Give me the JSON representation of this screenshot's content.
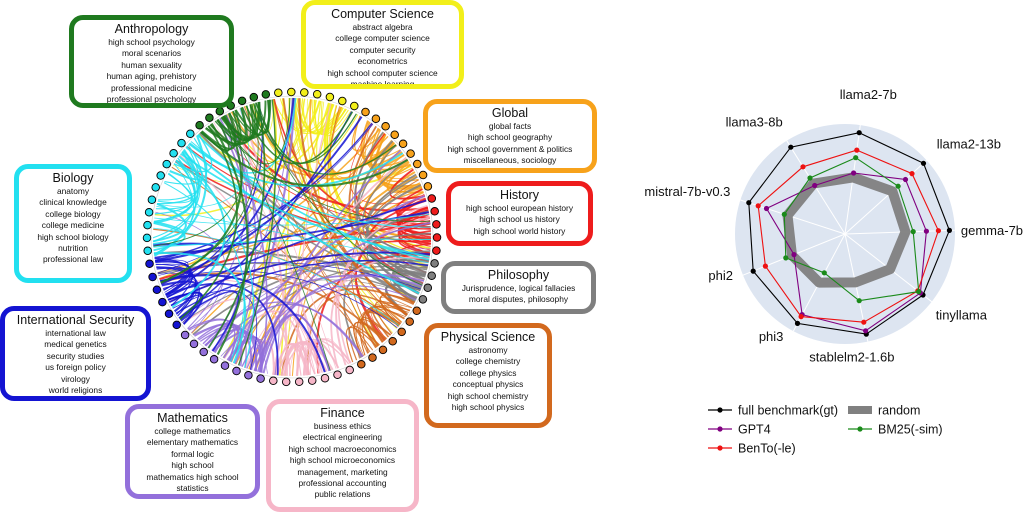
{
  "chord_panel": {
    "categories": [
      {
        "id": "anthropology",
        "title": "Anthropology",
        "color": "#1f7a1f",
        "items": [
          "high school psychology",
          "moral scenarios",
          "human sexuality",
          "human aging, prehistory",
          "professional medicine",
          "professional psychology"
        ]
      },
      {
        "id": "computer-science",
        "title": "Computer Science",
        "color": "#f2ef1a",
        "items": [
          "abstract algebra",
          "college computer science",
          "computer security",
          "econometrics",
          "high school computer science",
          "machine learning"
        ]
      },
      {
        "id": "global",
        "title": "Global",
        "color": "#f7a21b",
        "items": [
          "global facts",
          "high school geography",
          "high school government & politics",
          "miscellaneous, sociology"
        ]
      },
      {
        "id": "history",
        "title": "History",
        "color": "#ee1c1c",
        "items": [
          "high school european history",
          "high school us history",
          "high school world history"
        ]
      },
      {
        "id": "philosophy",
        "title": "Philosophy",
        "color": "#7f7f7f",
        "items": [
          "Jurisprudence, logical fallacies",
          "moral disputes, philosophy"
        ]
      },
      {
        "id": "physical-science",
        "title": "Physical Science",
        "color": "#d2691e",
        "items": [
          "astronomy",
          "college chemistry",
          "college physics",
          "conceptual physics",
          "high school chemistry",
          "high school physics"
        ]
      },
      {
        "id": "finance",
        "title": "Finance",
        "color": "#f6b6c8",
        "items": [
          "business ethics",
          "electrical engineering",
          "high school macroeconomics",
          "high school microeconomics",
          "management, marketing",
          "professional accounting",
          "public relations"
        ]
      },
      {
        "id": "mathematics",
        "title": "Mathematics",
        "color": "#9370db",
        "items": [
          "college mathematics",
          "elementary mathematics",
          "formal logic",
          "high school",
          "mathematics high school",
          "statistics"
        ]
      },
      {
        "id": "international-security",
        "title": "International Security",
        "color": "#1414d2",
        "items": [
          "international law",
          "medical genetics",
          "security studies",
          "us foreign policy",
          "virology",
          "world religions"
        ]
      },
      {
        "id": "biology",
        "title": "Biology",
        "color": "#22e0f0",
        "items": [
          "anatomy",
          "clinical knowledge",
          "college biology",
          "college medicine",
          "high school biology",
          "nutrition",
          "professional law"
        ]
      }
    ]
  },
  "chart_data": {
    "type": "radar",
    "axes": [
      "llama2-7b",
      "llama2-13b",
      "gemma-7b",
      "tinyllama",
      "stablelm2-1.6b",
      "phi3",
      "phi2",
      "mistral-7b-v0.3",
      "llama3-8b"
    ],
    "grid": true,
    "legend_position": "bottom",
    "series": [
      {
        "name": "full benchmark(gt)",
        "color": "#000000",
        "marker": "circle",
        "values": [
          0.93,
          0.96,
          0.95,
          0.9,
          0.93,
          0.92,
          0.9,
          0.92,
          0.93
        ]
      },
      {
        "name": "GPT4",
        "color": "#800080",
        "marker": "circle",
        "values": [
          0.56,
          0.74,
          0.74,
          0.87,
          0.9,
          0.83,
          0.5,
          0.75,
          0.52
        ]
      },
      {
        "name": "BenTo(-le)",
        "color": "#ee1111",
        "marker": "circle",
        "values": [
          0.77,
          0.82,
          0.85,
          0.84,
          0.82,
          0.85,
          0.78,
          0.83,
          0.72
        ]
      },
      {
        "name": "BM25(-sim)",
        "color": "#1a8a1a",
        "marker": "circle",
        "values": [
          0.7,
          0.65,
          0.62,
          0.85,
          0.62,
          0.4,
          0.58,
          0.58,
          0.6
        ]
      },
      {
        "name": "random",
        "color": "#808080",
        "marker": "none",
        "band": true,
        "values": [
          0.52,
          0.58,
          0.55,
          0.52,
          0.45,
          0.5,
          0.52,
          0.55,
          0.54
        ]
      }
    ]
  }
}
